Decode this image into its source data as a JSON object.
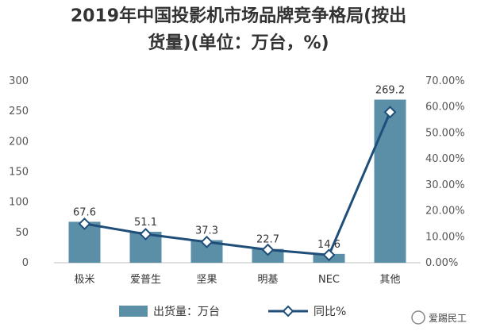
{
  "chart_data": {
    "type": "bar",
    "title": "2019年中国投影机市场品牌竞争格局(按出货量)(单位：万台，%)",
    "title_lines": [
      "2019年中国投影机市场品牌竞争格局(按出",
      "货量)(单位：万台，%)"
    ],
    "categories": [
      "极米",
      "爱普生",
      "坚果",
      "明基",
      "NEC",
      "其他"
    ],
    "series": [
      {
        "name": "出货量：万台",
        "type": "bar",
        "axis": "left",
        "color": "#5b8fa8",
        "values": [
          67.6,
          51.1,
          37.3,
          22.7,
          14.6,
          269.2
        ],
        "labels": [
          "67.6",
          "51.1",
          "37.3",
          "22.7",
          "14.6",
          "269.2"
        ]
      },
      {
        "name": "同比%",
        "type": "line",
        "axis": "right",
        "color": "#1f4e79",
        "marker": "diamond",
        "values": [
          15,
          11,
          8,
          5,
          3,
          58
        ]
      }
    ],
    "y_left": {
      "min": 0,
      "max": 300,
      "ticks": [
        "0",
        "50",
        "100",
        "150",
        "200",
        "250",
        "300"
      ]
    },
    "y_right": {
      "min": 0,
      "max": 70,
      "ticks": [
        "0.00%",
        "10.00%",
        "20.00%",
        "30.00%",
        "40.00%",
        "50.00%",
        "60.00%",
        "70.00%"
      ]
    },
    "grid": false,
    "legend_position": "bottom"
  },
  "watermark": {
    "text": "爱踢民工"
  }
}
